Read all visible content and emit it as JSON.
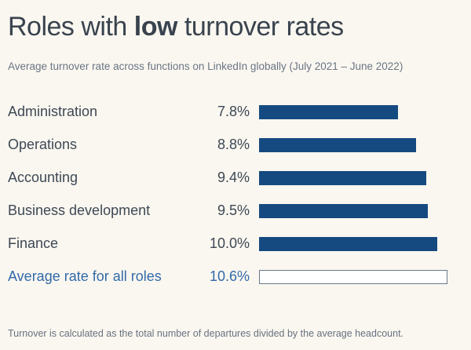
{
  "page": {
    "title_prefix": "Roles with ",
    "title_emphasis": "low",
    "title_suffix": " turnover rates",
    "subtitle": "Average turnover rate across functions on LinkedIn globally (July 2021 – June 2022)",
    "footnote": "Turnover is calculated as the total number of departures divided by the average headcount."
  },
  "colors": {
    "background": "#faf7f0",
    "title_text": "#39434e",
    "subtitle_text": "#6a7584",
    "label_text": "#3d4854",
    "highlight_text": "#336aa9",
    "bar_fill": "#154a80",
    "outline_bar_fill": "#ffffff",
    "outline_bar_border": "#6b7a8d",
    "footnote_text": "#67727f"
  },
  "chart_data": {
    "type": "bar",
    "orientation": "horizontal",
    "title": "Roles with low turnover rates",
    "subtitle": "Average turnover rate across functions on LinkedIn globally (July 2021 – June 2022)",
    "categories": [
      "Administration",
      "Operations",
      "Accounting",
      "Business development",
      "Finance",
      "Average rate for all roles"
    ],
    "values": [
      7.8,
      8.8,
      9.4,
      9.5,
      10.0,
      10.6
    ],
    "value_labels": [
      "7.8%",
      "8.8%",
      "9.4%",
      "9.5%",
      "10.0%",
      "10.6%"
    ],
    "xlim": [
      0,
      11.6
    ],
    "grid": false,
    "legend": false,
    "highlight_category": "Average rate for all roles",
    "highlight_style": "outlined-bar",
    "annotation": "Turnover is calculated as the total number of departures divided by the average headcount."
  }
}
